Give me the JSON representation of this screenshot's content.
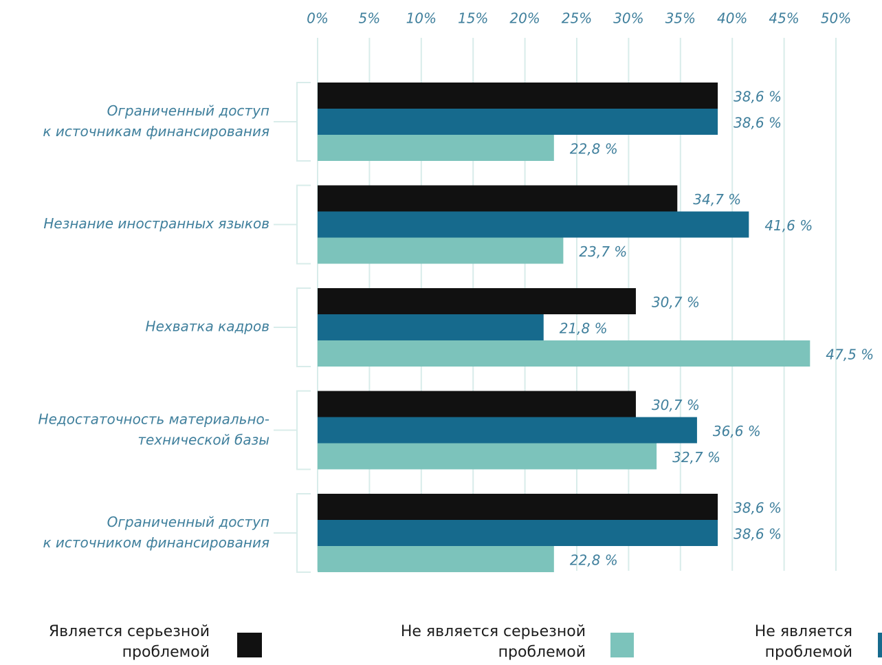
{
  "chart_data": {
    "type": "bar",
    "orientation": "horizontal",
    "categories": [
      "Ограниченный доступ\nк источникам финансирования",
      "Незнание  иностранных языков",
      "Нехватка кадров",
      "Недостаточность материально-\nтехнической базы",
      "Ограниченный доступ\nк источником финансирования"
    ],
    "series": [
      {
        "name": "Является серьезной\nпроблемой",
        "color": "#111111",
        "values": [
          38.6,
          34.7,
          30.7,
          30.7,
          38.6
        ],
        "value_labels": [
          "38,6 %",
          "34,7 %",
          "30,7 %",
          "30,7 %",
          "38,6 %"
        ]
      },
      {
        "name": "Не является\nпроблемой",
        "color": "#166a8d",
        "values": [
          38.6,
          41.6,
          21.8,
          36.6,
          38.6
        ],
        "value_labels": [
          "38,6 %",
          "41,6 %",
          "21,8 %",
          "36,6 %",
          "38,6 %"
        ]
      },
      {
        "name": "Не является серьезной\nпроблемой",
        "color": "#7cc3bb",
        "values": [
          22.8,
          23.7,
          47.5,
          32.7,
          22.8
        ],
        "value_labels": [
          "22,8 %",
          "23,7 %",
          "47,5 %",
          "32,7 %",
          "22,8 %"
        ]
      }
    ],
    "xlim": [
      0,
      50
    ],
    "xticks": [
      {
        "value": 0,
        "label": "0%"
      },
      {
        "value": 5,
        "label": "5%"
      },
      {
        "value": 10,
        "label": "10%"
      },
      {
        "value": 15,
        "label": "15%"
      },
      {
        "value": 20,
        "label": "20%"
      },
      {
        "value": 25,
        "label": "25%"
      },
      {
        "value": 30,
        "label": "30%"
      },
      {
        "value": 35,
        "label": "35%"
      },
      {
        "value": 40,
        "label": "40%"
      },
      {
        "value": 45,
        "label": "45%"
      },
      {
        "value": 50,
        "label": "50%"
      }
    ],
    "grid": true
  }
}
